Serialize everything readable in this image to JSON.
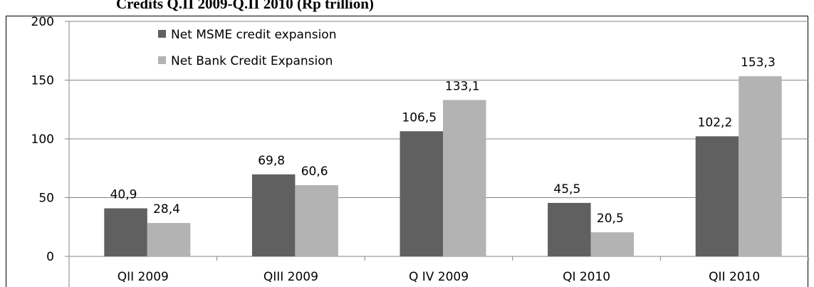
{
  "chart_data": {
    "type": "bar",
    "title": "Credits Q.II 2009-Q.II 2010 (Rp trillion)",
    "categories": [
      "QII 2009",
      "QIII 2009",
      "Q IV 2009",
      "QI 2010",
      "QII 2010"
    ],
    "series": [
      {
        "name": "Net MSME credit expansion",
        "color": "#606060",
        "values": [
          40.9,
          69.8,
          106.5,
          45.5,
          102.2
        ],
        "value_labels": [
          "40,9",
          "69,8",
          "106,5",
          "45,5",
          "102,2"
        ]
      },
      {
        "name": "Net Bank Credit Expansion",
        "color": "#b3b3b3",
        "values": [
          28.4,
          60.6,
          133.1,
          20.5,
          153.3
        ],
        "value_labels": [
          "28,4",
          "60,6",
          "133,1",
          "20,5",
          "153,3"
        ]
      }
    ],
    "ylim": [
      0,
      200
    ],
    "yticks": [
      0,
      50,
      100,
      150,
      200
    ],
    "grid": true,
    "legend": "top-left"
  }
}
